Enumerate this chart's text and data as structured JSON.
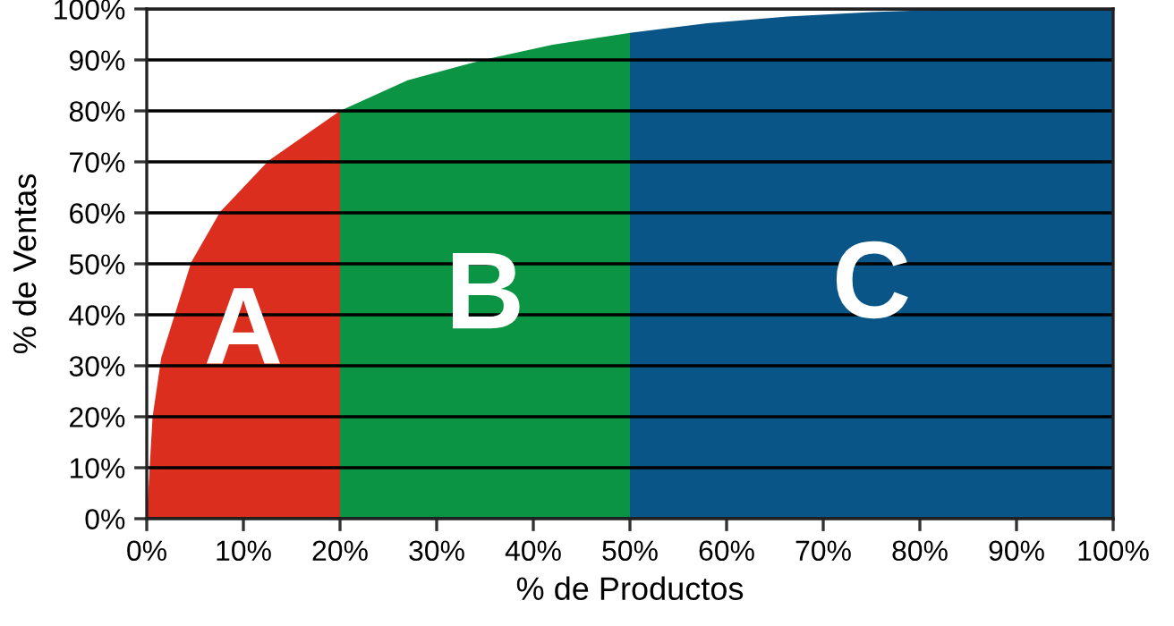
{
  "chart_data": {
    "type": "area",
    "xlabel": "% de Productos",
    "ylabel": "% de Ventas",
    "series": [
      {
        "name": "A",
        "color": "#dc2e1e",
        "x": [
          0,
          0.6,
          1.5,
          4.6,
          7.6,
          12.6,
          20
        ],
        "values": [
          0,
          19.9,
          31.6,
          50.3,
          60.2,
          70.2,
          80
        ]
      },
      {
        "name": "B",
        "color": "#0a9444",
        "x": [
          20,
          27,
          34.8,
          42,
          50
        ],
        "values": [
          80,
          86,
          90,
          93,
          95.3
        ]
      },
      {
        "name": "C",
        "color": "#0a5587",
        "x": [
          50,
          58,
          66.3,
          75,
          84.8,
          100
        ],
        "values": [
          95.3,
          97.2,
          98.5,
          99.4,
          100,
          100
        ]
      }
    ],
    "xlim": [
      0,
      100
    ],
    "ylim": [
      0,
      100
    ],
    "xticks": [
      {
        "value": 0,
        "label": "0%"
      },
      {
        "value": 10,
        "label": "10%"
      },
      {
        "value": 20,
        "label": "20%"
      },
      {
        "value": 30,
        "label": "30%"
      },
      {
        "value": 40,
        "label": "40%"
      },
      {
        "value": 50,
        "label": "50%"
      },
      {
        "value": 60,
        "label": "60%"
      },
      {
        "value": 70,
        "label": "70%"
      },
      {
        "value": 80,
        "label": "80%"
      },
      {
        "value": 90,
        "label": "90%"
      },
      {
        "value": 100,
        "label": "100%"
      }
    ],
    "yticks": [
      {
        "value": 0,
        "label": "0%"
      },
      {
        "value": 10,
        "label": "10%"
      },
      {
        "value": 20,
        "label": "20%"
      },
      {
        "value": 30,
        "label": "30%"
      },
      {
        "value": 40,
        "label": "40%"
      },
      {
        "value": 50,
        "label": "50%"
      },
      {
        "value": 60,
        "label": "60%"
      },
      {
        "value": 70,
        "label": "70%"
      },
      {
        "value": 80,
        "label": "80%"
      },
      {
        "value": 90,
        "label": "90%"
      },
      {
        "value": 100,
        "label": "100%"
      }
    ],
    "grid": "y"
  }
}
